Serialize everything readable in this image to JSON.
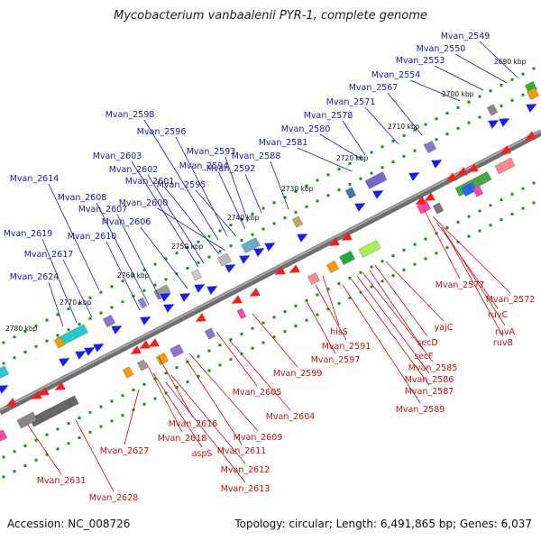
{
  "title": "Mycobacterium vanbaalenii PYR-1, complete genome",
  "footer": {
    "accession": "Accession: NC_008726",
    "stats": "Topology: circular; Length: 6,491,865 bp; Genes: 6,037"
  },
  "colors": {
    "forward": "#1a1aff",
    "reverse": "#ff1a1a",
    "leader_forward": "#1a1aa8",
    "leader_reverse": "#cc1111",
    "tick": "#119911",
    "backbone": "#8a8a8a"
  },
  "scale_labels": [
    "2690 kbp",
    "2700 kbp",
    "2710 kbp",
    "2720 kbp",
    "2730 kbp",
    "2740 kbp",
    "2750 kbp",
    "2760 kbp",
    "2770 kbp",
    "2780 kbp"
  ],
  "forward_genes": [
    "Mvan_2549",
    "Mvan_2550",
    "Mvan_2553",
    "Mvan_2554",
    "Mvan_2567",
    "Mvan_2571",
    "Mvan_2578",
    "Mvan_2580",
    "Mvan_2581",
    "Mvan_2588",
    "Mvan_2592",
    "Mvan_2593",
    "Mvan_2594",
    "Mvan_2595",
    "Mvan_2596",
    "Mvan_2598",
    "Mvan_2600",
    "Mvan_2601",
    "Mvan_2602",
    "Mvan_2603",
    "Mvan_2606",
    "Mvan_2607",
    "Mvan_2608",
    "Mvan_2610",
    "Mvan_2614",
    "Mvan_2617",
    "Mvan_2619",
    "Mvan_2624"
  ],
  "reverse_genes": [
    "Mvan_2577",
    "Mvan_2572",
    "ruvC",
    "ruvA",
    "ruvB",
    "yajC",
    "secD",
    "secF",
    "Mvan_2585",
    "Mvan_2586",
    "Mvan_2587",
    "Mvan_2589",
    "hisS",
    "Mvan_2591",
    "Mvan_2597",
    "Mvan_2599",
    "Mvan_2605",
    "Mvan_2604",
    "Mvan_2609",
    "Mvan_2616",
    "Mvan_2611",
    "Mvan_2618",
    "aspS",
    "Mvan_2612",
    "Mvan_2613",
    "Mvan_2627",
    "Mvan_2631",
    "Mvan_2628"
  ]
}
